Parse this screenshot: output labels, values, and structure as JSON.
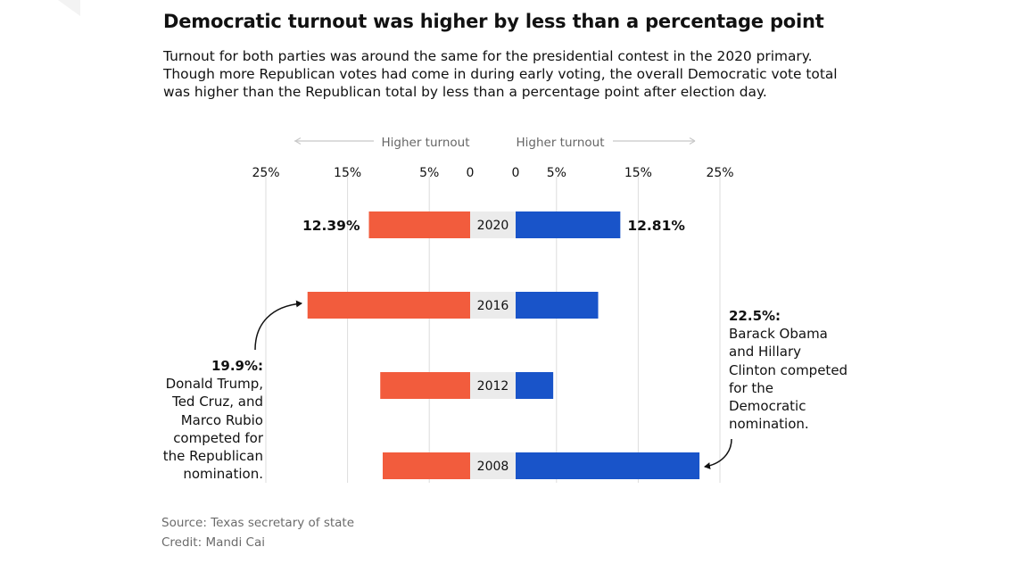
{
  "title": "Democratic turnout was higher by less than a percentage point",
  "subtitle": "Turnout for both parties was around the same for the presidential contest in the 2020 primary. Though more Republican votes had come in during early voting, the overall Democratic vote total was higher than the Republican total by less than a percentage point after election day.",
  "source": "Source: Texas secretary of state",
  "credit": "Credit: Mandi Cai",
  "colors": {
    "republican": "#f25c3d",
    "democratic": "#1954c9",
    "grid": "#dddddd",
    "year_bg": "#ebebeb",
    "arrow_gray": "#c8c8c8"
  },
  "chart_data": {
    "type": "bar",
    "layout": "butterfly",
    "categories": [
      "2020",
      "2016",
      "2012",
      "2008"
    ],
    "left_header": "Higher turnout",
    "right_header": "Higher turnout",
    "left_ticks": [
      "25%",
      "15%",
      "5%",
      "0"
    ],
    "right_ticks": [
      "0",
      "5%",
      "15%",
      "25%"
    ],
    "xlim": [
      0,
      25
    ],
    "series": [
      {
        "key": "republican",
        "values": [
          12.39,
          19.9,
          11.0,
          10.7
        ]
      },
      {
        "key": "democratic",
        "values": [
          12.81,
          10.1,
          4.6,
          22.5
        ]
      }
    ],
    "data_labels": {
      "republican_2020": "12.39%",
      "democratic_2020": "12.81%"
    },
    "annotations": {
      "republican": {
        "value": "19.9%:",
        "lines": [
          "Donald Trump,",
          "Ted Cruz, and",
          "Marco Rubio",
          "competed for",
          "the Republican",
          "nomination."
        ]
      },
      "democratic": {
        "value": "22.5%:",
        "lines": [
          "Barack Obama",
          "and Hillary",
          "Clinton competed",
          "for the",
          "Democratic",
          "nomination."
        ]
      }
    }
  }
}
